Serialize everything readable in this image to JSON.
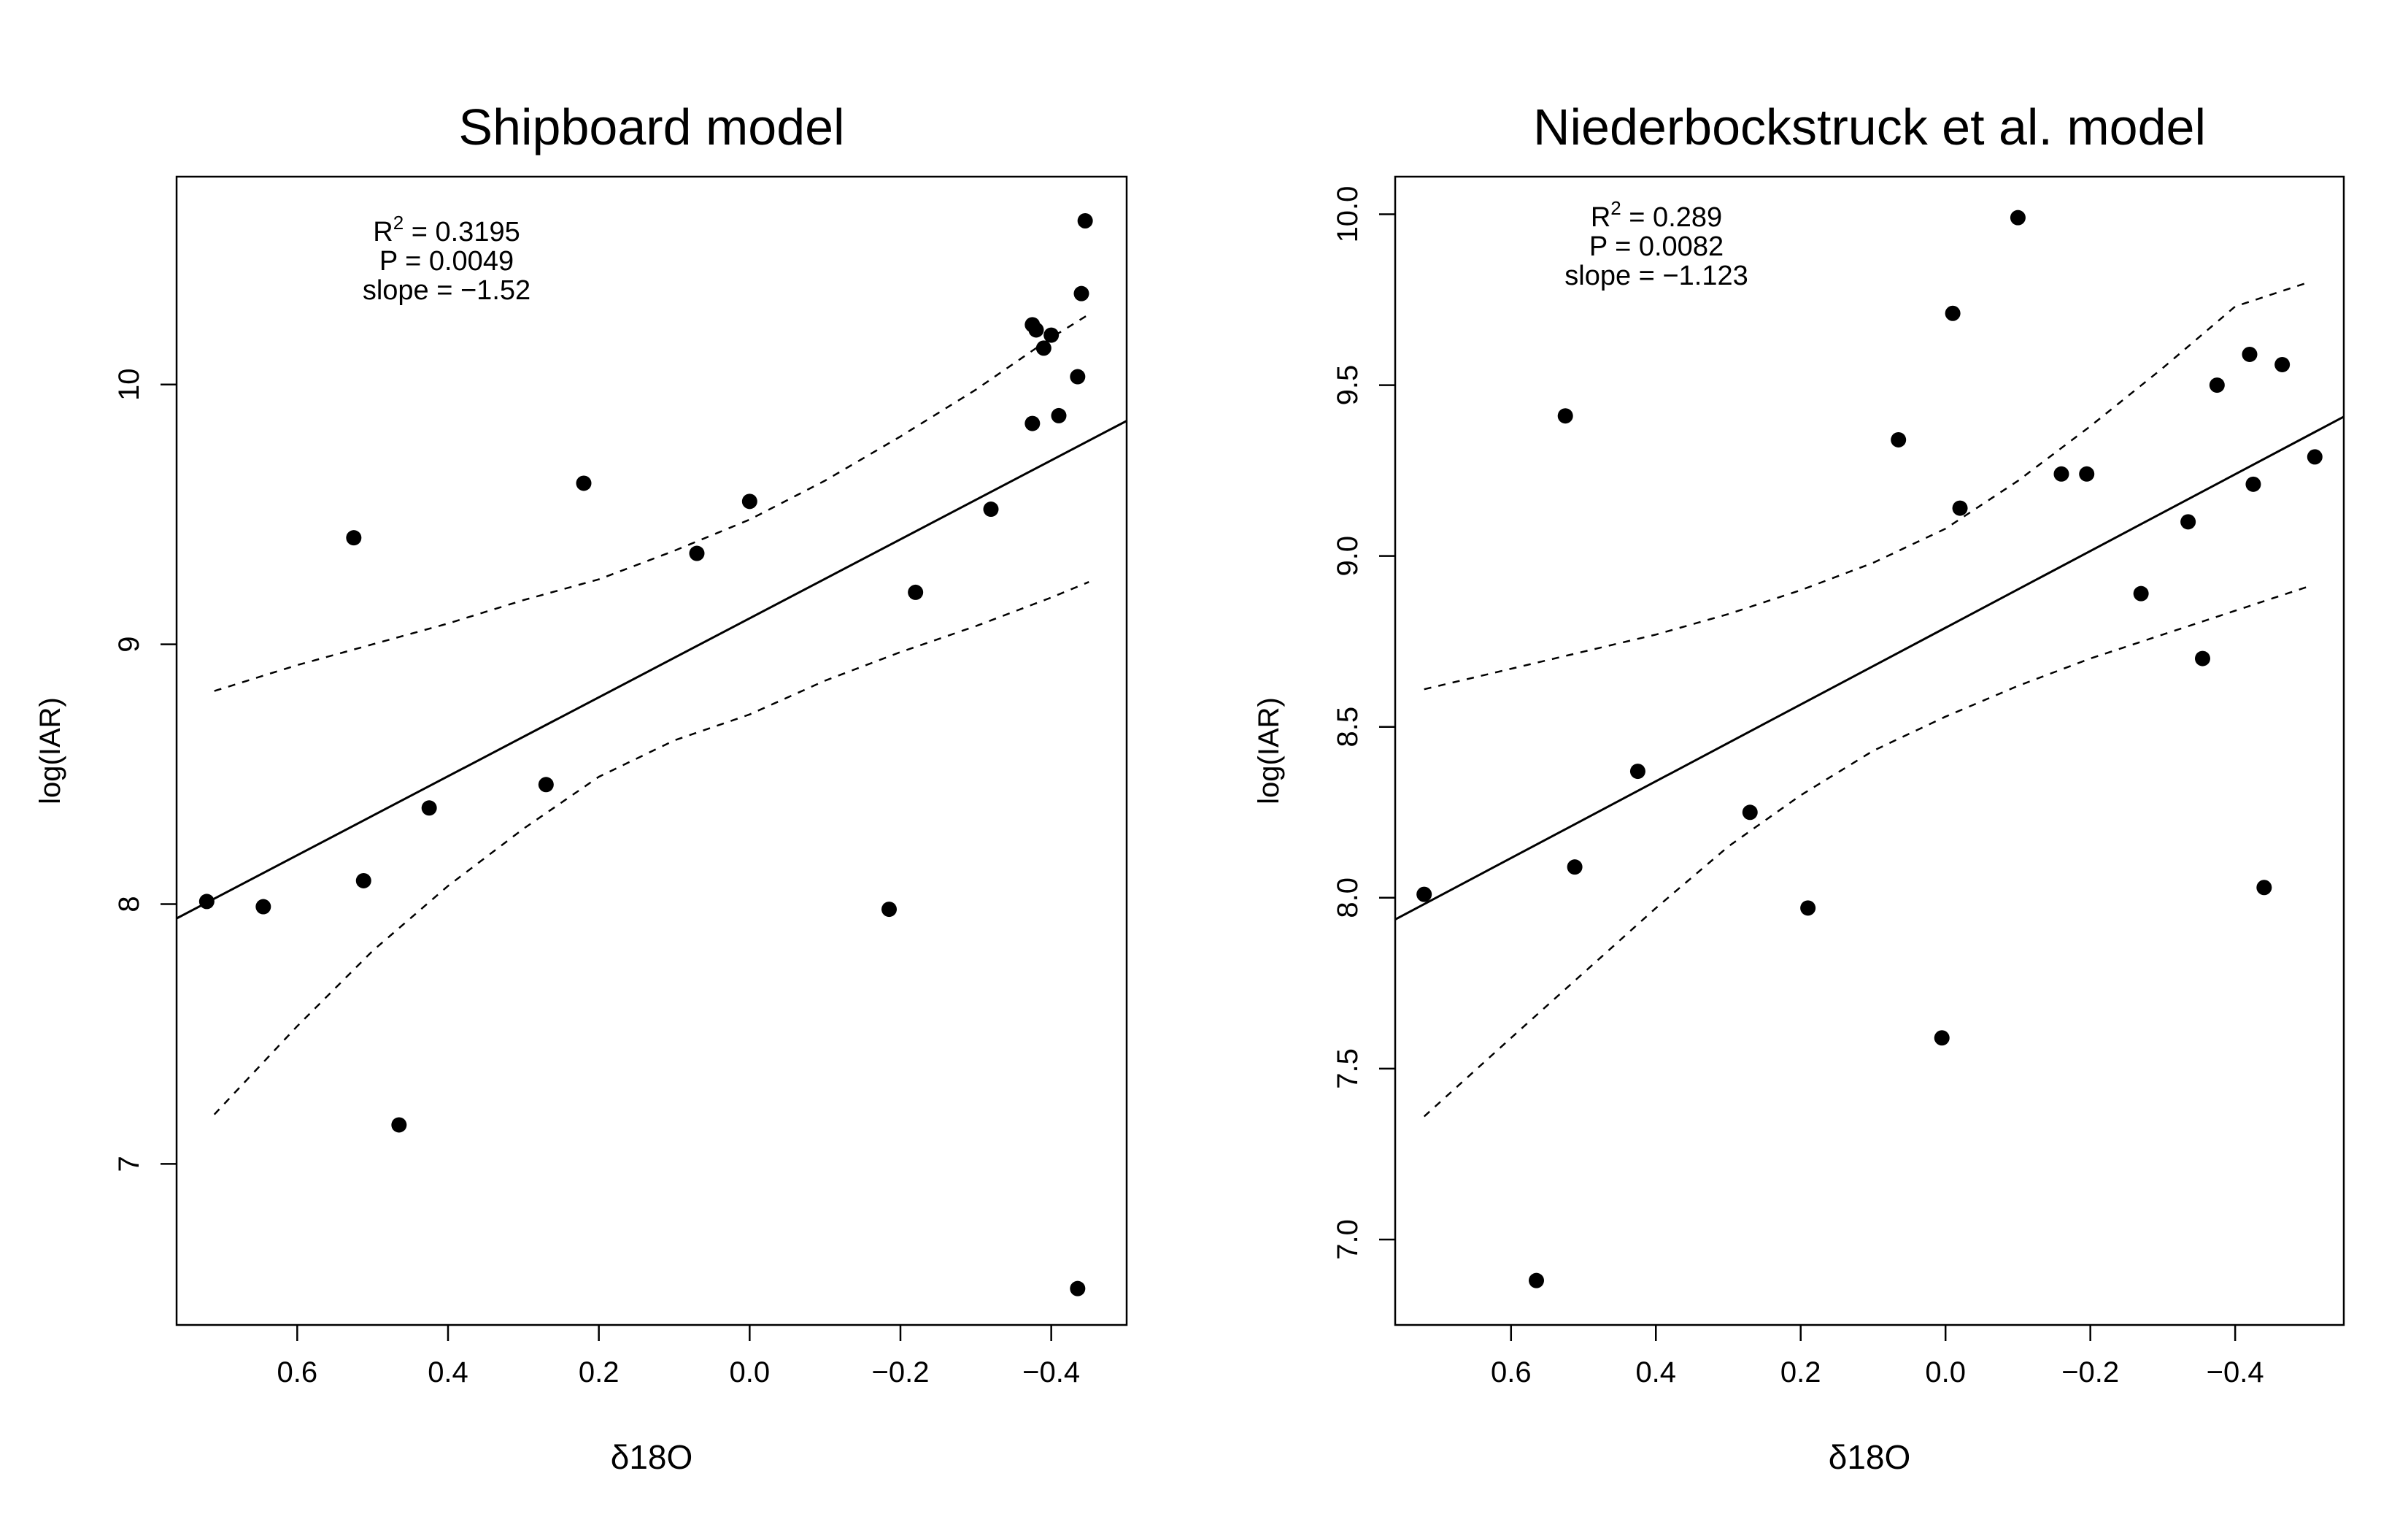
{
  "chart_data": [
    {
      "type": "scatter",
      "title": "Shipboard model",
      "xlabel": "δ18O",
      "ylabel": "log(IAR)",
      "x_reversed": true,
      "xlim": [
        0.76,
        -0.5
      ],
      "ylim": [
        6.38,
        10.8
      ],
      "xticks": [
        0.6,
        0.4,
        0.2,
        0.0,
        -0.2,
        -0.4
      ],
      "xtick_labels": [
        "0.6",
        "0.4",
        "0.2",
        "0.0",
        "−0.2",
        "−0.4"
      ],
      "yticks": [
        7,
        8,
        9,
        10
      ],
      "ytick_labels": [
        "7",
        "8",
        "9",
        "10"
      ],
      "annotation": {
        "r2_label": "R",
        "r2_exp": "2",
        "r2_value": " = 0.3195",
        "p": "P = 0.0049",
        "slope": "slope = −1.52"
      },
      "fit": {
        "slope": -1.52,
        "intercept": 9.1,
        "type": "linear"
      },
      "band": {
        "x": [
          0.71,
          0.6,
          0.5,
          0.4,
          0.3,
          0.2,
          0.1,
          0.0,
          -0.1,
          -0.2,
          -0.3,
          -0.4,
          -0.45
        ],
        "upper": [
          8.82,
          8.92,
          9.0,
          9.08,
          9.17,
          9.25,
          9.36,
          9.48,
          9.63,
          9.8,
          9.98,
          10.18,
          10.27
        ],
        "lower": [
          7.19,
          7.53,
          7.82,
          8.07,
          8.29,
          8.49,
          8.63,
          8.73,
          8.86,
          8.97,
          9.07,
          9.18,
          9.24
        ]
      },
      "points": [
        {
          "x": 0.72,
          "y": 8.01
        },
        {
          "x": 0.645,
          "y": 7.99
        },
        {
          "x": 0.525,
          "y": 9.41
        },
        {
          "x": 0.512,
          "y": 8.09
        },
        {
          "x": 0.465,
          "y": 7.15
        },
        {
          "x": 0.425,
          "y": 8.37
        },
        {
          "x": 0.27,
          "y": 8.46
        },
        {
          "x": 0.22,
          "y": 9.62
        },
        {
          "x": 0.07,
          "y": 9.35
        },
        {
          "x": 0.0,
          "y": 9.55
        },
        {
          "x": -0.185,
          "y": 7.98
        },
        {
          "x": -0.22,
          "y": 9.2
        },
        {
          "x": -0.32,
          "y": 9.52
        },
        {
          "x": -0.375,
          "y": 9.85
        },
        {
          "x": -0.375,
          "y": 10.23
        },
        {
          "x": -0.38,
          "y": 10.21
        },
        {
          "x": -0.39,
          "y": 10.14
        },
        {
          "x": -0.4,
          "y": 10.19
        },
        {
          "x": -0.41,
          "y": 9.88
        },
        {
          "x": -0.435,
          "y": 10.03
        },
        {
          "x": -0.435,
          "y": 6.52
        },
        {
          "x": -0.44,
          "y": 10.35
        },
        {
          "x": -0.445,
          "y": 10.63
        }
      ]
    },
    {
      "type": "scatter",
      "title": "Niederbockstruck et al. model",
      "xlabel": "δ18O",
      "ylabel": "log(IAR)",
      "x_reversed": true,
      "xlim": [
        0.76,
        -0.55
      ],
      "ylim": [
        6.75,
        10.11
      ],
      "xticks": [
        0.6,
        0.4,
        0.2,
        0.0,
        -0.2,
        -0.4
      ],
      "xtick_labels": [
        "0.6",
        "0.4",
        "0.2",
        "0.0",
        "−0.2",
        "−0.4"
      ],
      "yticks": [
        7.0,
        7.5,
        8.0,
        8.5,
        9.0,
        9.5,
        10.0
      ],
      "ytick_labels": [
        "7.0",
        "7.5",
        "8.0",
        "8.5",
        "9.0",
        "9.5",
        "10.0"
      ],
      "annotation": {
        "r2_label": "R",
        "r2_exp": "2",
        "r2_value": " = 0.289",
        "p": "P = 0.0082",
        "slope": "slope = −1.123"
      },
      "fit": {
        "slope": -1.123,
        "intercept": 8.79,
        "type": "linear"
      },
      "band": {
        "x": [
          0.72,
          0.6,
          0.5,
          0.4,
          0.3,
          0.2,
          0.1,
          0.0,
          -0.1,
          -0.2,
          -0.3,
          -0.4,
          -0.5
        ],
        "upper": [
          8.61,
          8.67,
          8.72,
          8.77,
          8.83,
          8.9,
          8.98,
          9.08,
          9.22,
          9.38,
          9.55,
          9.73,
          9.8
        ],
        "lower": [
          7.36,
          7.59,
          7.78,
          7.97,
          8.15,
          8.3,
          8.43,
          8.53,
          8.62,
          8.7,
          8.77,
          8.84,
          8.91
        ]
      },
      "points": [
        {
          "x": 0.72,
          "y": 8.01
        },
        {
          "x": 0.565,
          "y": 6.88
        },
        {
          "x": 0.525,
          "y": 9.41
        },
        {
          "x": 0.512,
          "y": 8.09
        },
        {
          "x": 0.425,
          "y": 8.37
        },
        {
          "x": 0.27,
          "y": 8.25
        },
        {
          "x": 0.19,
          "y": 7.97
        },
        {
          "x": 0.065,
          "y": 9.34
        },
        {
          "x": 0.005,
          "y": 7.59
        },
        {
          "x": -0.01,
          "y": 9.71
        },
        {
          "x": -0.02,
          "y": 9.14
        },
        {
          "x": -0.1,
          "y": 9.99
        },
        {
          "x": -0.16,
          "y": 9.24
        },
        {
          "x": -0.195,
          "y": 9.24
        },
        {
          "x": -0.27,
          "y": 8.89
        },
        {
          "x": -0.335,
          "y": 9.1
        },
        {
          "x": -0.355,
          "y": 8.7
        },
        {
          "x": -0.375,
          "y": 9.5
        },
        {
          "x": -0.42,
          "y": 9.59
        },
        {
          "x": -0.425,
          "y": 9.21
        },
        {
          "x": -0.44,
          "y": 8.03
        },
        {
          "x": -0.465,
          "y": 9.56
        },
        {
          "x": -0.51,
          "y": 9.29
        }
      ]
    }
  ]
}
